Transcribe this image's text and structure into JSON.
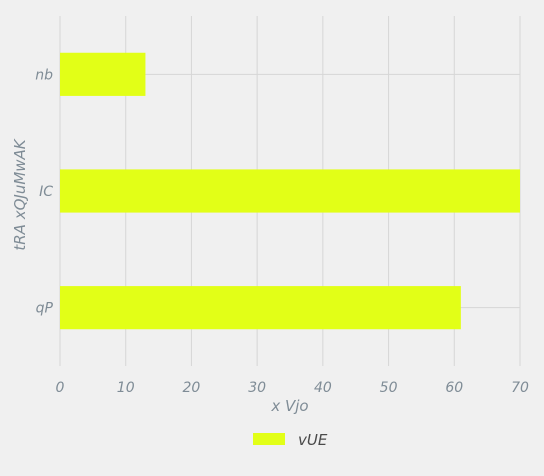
{
  "chart_data": {
    "type": "bar",
    "orientation": "horizontal",
    "categories": [
      "qP",
      "IC",
      "nb"
    ],
    "series": [
      {
        "name": "vUE",
        "values": [
          61,
          70,
          13
        ],
        "color": "#e2ff17"
      }
    ],
    "xlabel": "x Vjo",
    "ylabel": "tRA xQJuMwAK",
    "xlim": [
      0,
      70
    ],
    "xticks": [
      "0",
      "10",
      "20",
      "30",
      "40",
      "50",
      "60",
      "70"
    ],
    "grid": true,
    "legend_position": "bottom-center"
  },
  "colors": {
    "background": "#f0f0f0",
    "bar": "#e2ff17",
    "grid": "#d6d6d6",
    "text": "#7f8c96"
  }
}
